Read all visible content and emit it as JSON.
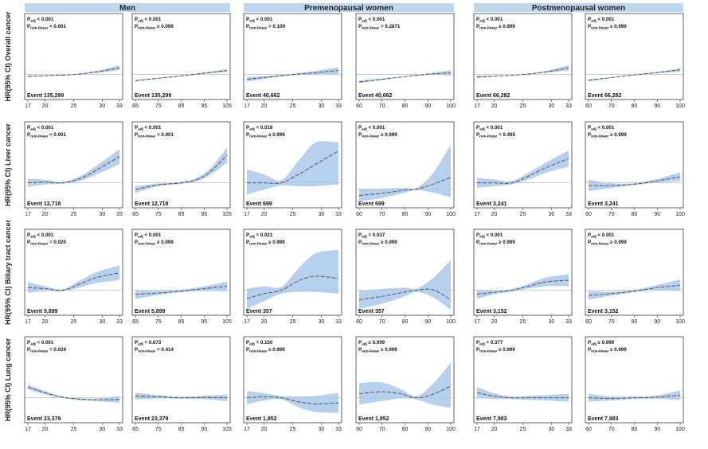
{
  "groups": [
    "Men",
    "Premenopausal women",
    "Postmenopausal women"
  ],
  "rows": [
    "HR(95% CI) Overall cancer",
    "HR(95% CI) Liver cancer",
    "HR(95% CI) Biliary tract cancer",
    "HR(95% CI) Lung cancer"
  ],
  "chart_data": [
    {
      "type": "line",
      "row": 0,
      "col": 0,
      "xticks": [
        "17",
        "20",
        "25",
        "30",
        "33"
      ],
      "xlim": [
        17,
        33
      ],
      "yticks": [
        "0.5",
        "1.0",
        "1.5",
        "2.0"
      ],
      "ylim": [
        0.4,
        2.2
      ],
      "p_adj": "< 0.001",
      "p_nonlinear": "< 0.001",
      "event": "Event 135,299",
      "x": [
        17,
        21,
        25,
        29,
        33
      ],
      "y": [
        0.95,
        0.97,
        1.0,
        1.08,
        1.2
      ],
      "lo": [
        0.93,
        0.96,
        0.99,
        1.05,
        1.13
      ],
      "hi": [
        0.97,
        0.98,
        1.01,
        1.11,
        1.27
      ]
    },
    {
      "type": "line",
      "row": 0,
      "col": 1,
      "xticks": [
        "65",
        "75",
        "85",
        "95",
        "105"
      ],
      "xlim": [
        65,
        105
      ],
      "yticks": [
        "0.5",
        "1.0",
        "1.5",
        "2.0"
      ],
      "ylim": [
        0.4,
        2.2
      ],
      "p_adj": "< 0.001",
      "p_nonlinear": "≥ 0.999",
      "event": "Event 135,299",
      "x": [
        65,
        75,
        85,
        95,
        105
      ],
      "y": [
        0.82,
        0.89,
        0.96,
        1.04,
        1.12
      ],
      "lo": [
        0.8,
        0.88,
        0.95,
        1.02,
        1.08
      ],
      "hi": [
        0.84,
        0.9,
        0.97,
        1.06,
        1.16
      ]
    },
    {
      "type": "line",
      "row": 0,
      "col": 2,
      "xticks": [
        "17",
        "20",
        "25",
        "30",
        "33"
      ],
      "xlim": [
        17,
        33
      ],
      "yticks": [
        "0.5",
        "1.0",
        "1.5",
        "2.0"
      ],
      "ylim": [
        0.4,
        2.2
      ],
      "p_adj": "< 0.001",
      "p_nonlinear": "= 0.109",
      "event": "Event 40,662",
      "x": [
        17,
        21,
        25,
        29,
        33
      ],
      "y": [
        0.86,
        0.93,
        1.0,
        1.06,
        1.12
      ],
      "lo": [
        0.79,
        0.9,
        0.98,
        1.01,
        1.02
      ],
      "hi": [
        0.93,
        0.96,
        1.02,
        1.11,
        1.22
      ]
    },
    {
      "type": "line",
      "row": 0,
      "col": 3,
      "xticks": [
        "60",
        "70",
        "80",
        "90",
        "100"
      ],
      "xlim": [
        60,
        100
      ],
      "yticks": [
        "0.5",
        "1.0",
        "1.5",
        "2.0"
      ],
      "ylim": [
        0.4,
        2.2
      ],
      "p_adj": "< 0.001",
      "p_nonlinear": "= 0.2871",
      "event": "Event 40,662",
      "x": [
        60,
        70,
        80,
        90,
        100
      ],
      "y": [
        0.78,
        0.86,
        0.94,
        1.01,
        1.05
      ],
      "lo": [
        0.74,
        0.84,
        0.93,
        0.99,
        0.97
      ],
      "hi": [
        0.82,
        0.88,
        0.95,
        1.03,
        1.13
      ]
    },
    {
      "type": "line",
      "row": 0,
      "col": 4,
      "xticks": [
        "17",
        "20",
        "25",
        "30",
        "33"
      ],
      "xlim": [
        17,
        33
      ],
      "yticks": [
        "0.5",
        "1.0",
        "1.5",
        "2.0"
      ],
      "ylim": [
        0.4,
        2.2
      ],
      "p_adj": "< 0.001",
      "p_nonlinear": "≥ 0.999",
      "event": "Event 66,282",
      "x": [
        17,
        21,
        25,
        29,
        33
      ],
      "y": [
        0.93,
        0.96,
        1.0,
        1.08,
        1.2
      ],
      "lo": [
        0.9,
        0.95,
        0.99,
        1.05,
        1.12
      ],
      "hi": [
        0.96,
        0.97,
        1.01,
        1.11,
        1.28
      ]
    },
    {
      "type": "line",
      "row": 0,
      "col": 5,
      "xticks": [
        "60",
        "70",
        "80",
        "90",
        "100"
      ],
      "xlim": [
        60,
        100
      ],
      "yticks": [
        "0.5",
        "1.0",
        "1.5",
        "2.0"
      ],
      "ylim": [
        0.4,
        2.2
      ],
      "p_adj": "< 0.001",
      "p_nonlinear": "≥ 0.999",
      "event": "Event 66,282",
      "x": [
        60,
        70,
        80,
        90,
        100
      ],
      "y": [
        0.83,
        0.91,
        0.99,
        1.06,
        1.14
      ],
      "lo": [
        0.8,
        0.9,
        0.98,
        1.04,
        1.09
      ],
      "hi": [
        0.86,
        0.92,
        1.0,
        1.08,
        1.19
      ]
    },
    {
      "type": "line",
      "row": 1,
      "col": 0,
      "xticks": [
        "17",
        "20",
        "25",
        "30",
        "33"
      ],
      "xlim": [
        17,
        33
      ],
      "yticks": [
        "0.5",
        "1.0",
        "1.5",
        "2.0"
      ],
      "ylim": [
        0.4,
        2.2
      ],
      "p_adj": "< 0.001",
      "p_nonlinear": "< 0.001",
      "event": "Event 12,718",
      "x": [
        17,
        20,
        23,
        26,
        29,
        33
      ],
      "y": [
        1.0,
        1.02,
        1.0,
        1.12,
        1.38,
        1.78
      ],
      "lo": [
        0.88,
        0.95,
        0.97,
        1.05,
        1.25,
        1.55
      ],
      "hi": [
        1.12,
        1.09,
        1.03,
        1.19,
        1.51,
        2.0
      ]
    },
    {
      "type": "line",
      "row": 1,
      "col": 1,
      "xticks": [
        "65",
        "75",
        "85",
        "95",
        "105"
      ],
      "xlim": [
        65,
        105
      ],
      "yticks": [
        "0.5",
        "1.0",
        "1.5",
        "2.0"
      ],
      "ylim": [
        0.4,
        2.2
      ],
      "p_adj": "< 0.001",
      "p_nonlinear": "< 0.001",
      "event": "Event 12,718",
      "x": [
        65,
        75,
        85,
        92,
        98,
        105
      ],
      "y": [
        0.8,
        0.94,
        1.0,
        1.1,
        1.35,
        1.82
      ],
      "lo": [
        0.7,
        0.9,
        0.97,
        1.05,
        1.25,
        1.6
      ],
      "hi": [
        0.9,
        0.98,
        1.03,
        1.15,
        1.45,
        2.05
      ]
    },
    {
      "type": "line",
      "row": 1,
      "col": 2,
      "xticks": [
        "17",
        "20",
        "25",
        "30",
        "33"
      ],
      "xlim": [
        17,
        33
      ],
      "yticks": [
        "0.5",
        "1.0",
        "1.5",
        "2.0"
      ],
      "ylim": [
        0.4,
        2.2
      ],
      "p_adj": "= 0.018",
      "p_nonlinear": "≥ 0.999",
      "event": "Event 699",
      "x": [
        17,
        20,
        23,
        26,
        29,
        33
      ],
      "y": [
        1.0,
        1.0,
        1.0,
        1.25,
        1.55,
        1.95
      ],
      "lo": [
        0.65,
        0.8,
        0.92,
        0.9,
        0.9,
        0.95
      ],
      "hi": [
        1.4,
        1.25,
        1.08,
        1.65,
        2.2,
        2.2
      ]
    },
    {
      "type": "line",
      "row": 1,
      "col": 3,
      "xticks": [
        "60",
        "70",
        "80",
        "90",
        "100"
      ],
      "xlim": [
        60,
        100
      ],
      "yticks": [
        "0.5",
        "1.0",
        "1.5",
        "2.0"
      ],
      "ylim": [
        0.4,
        3.0
      ],
      "p_adj": "< 0.001",
      "p_nonlinear": "≥ 0.999",
      "event": "Event 699",
      "x": [
        60,
        70,
        80,
        85,
        92,
        100
      ],
      "y": [
        0.72,
        0.82,
        0.95,
        1.0,
        1.2,
        1.5
      ],
      "lo": [
        0.48,
        0.62,
        0.85,
        0.95,
        0.85,
        0.65
      ],
      "hi": [
        0.98,
        1.02,
        1.05,
        1.05,
        1.65,
        2.9
      ]
    },
    {
      "type": "line",
      "row": 1,
      "col": 4,
      "xticks": [
        "17",
        "20",
        "25",
        "30",
        "33"
      ],
      "xlim": [
        17,
        33
      ],
      "yticks": [
        "0.5",
        "1.0",
        "1.5",
        "2.0"
      ],
      "ylim": [
        0.4,
        2.2
      ],
      "p_adj": "< 0.001",
      "p_nonlinear": "= 0.495",
      "event": "Event 3,241",
      "x": [
        17,
        20,
        23,
        26,
        29,
        33
      ],
      "y": [
        1.0,
        1.0,
        1.0,
        1.2,
        1.45,
        1.72
      ],
      "lo": [
        0.85,
        0.9,
        0.95,
        1.1,
        1.3,
        1.48
      ],
      "hi": [
        1.15,
        1.1,
        1.05,
        1.3,
        1.6,
        1.96
      ]
    },
    {
      "type": "line",
      "row": 1,
      "col": 5,
      "xticks": [
        "60",
        "70",
        "80",
        "90",
        "100"
      ],
      "xlim": [
        60,
        100
      ],
      "yticks": [
        "0.5",
        "1.0",
        "1.5",
        "2.0"
      ],
      "ylim": [
        0.4,
        2.2
      ],
      "p_adj": "< 0.001",
      "p_nonlinear": "≥ 0.999",
      "event": "Event 3,241",
      "x": [
        60,
        70,
        80,
        90,
        100
      ],
      "y": [
        0.92,
        0.92,
        0.96,
        1.06,
        1.18
      ],
      "lo": [
        0.75,
        0.85,
        0.93,
        1.0,
        1.05
      ],
      "hi": [
        1.09,
        0.99,
        0.99,
        1.12,
        1.31
      ]
    },
    {
      "type": "line",
      "row": 2,
      "col": 0,
      "xticks": [
        "17",
        "20",
        "25",
        "30",
        "33"
      ],
      "xlim": [
        17,
        33
      ],
      "yticks": [
        "0.5",
        "1.0",
        "1.5",
        "2.0"
      ],
      "ylim": [
        0.4,
        2.2
      ],
      "p_adj": "< 0.001",
      "p_nonlinear": "= 0.020",
      "event": "Event 5,899",
      "x": [
        17,
        20,
        23,
        26,
        29,
        33
      ],
      "y": [
        1.08,
        1.05,
        1.0,
        1.18,
        1.38,
        1.52
      ],
      "lo": [
        0.92,
        0.98,
        0.97,
        1.08,
        1.22,
        1.3
      ],
      "hi": [
        1.24,
        1.12,
        1.03,
        1.28,
        1.54,
        1.74
      ]
    },
    {
      "type": "line",
      "row": 2,
      "col": 1,
      "xticks": [
        "65",
        "75",
        "85",
        "95",
        "105"
      ],
      "xlim": [
        65,
        105
      ],
      "yticks": [
        "0.5",
        "1.0",
        "1.5",
        "2.0"
      ],
      "ylim": [
        0.4,
        2.2
      ],
      "p_adj": "< 0.001",
      "p_nonlinear": "≥ 0.999",
      "event": "Event 5,899",
      "x": [
        65,
        75,
        85,
        95,
        105
      ],
      "y": [
        0.88,
        0.92,
        0.98,
        1.05,
        1.12
      ],
      "lo": [
        0.75,
        0.86,
        0.94,
        0.98,
        0.98
      ],
      "hi": [
        1.01,
        0.98,
        1.02,
        1.12,
        1.26
      ]
    },
    {
      "type": "line",
      "row": 2,
      "col": 2,
      "xticks": [
        "17",
        "20",
        "25",
        "30",
        "33"
      ],
      "xlim": [
        17,
        33
      ],
      "yticks": [
        "0.5",
        "1.0",
        "1.5",
        "2.0"
      ],
      "ylim": [
        0.4,
        2.2
      ],
      "p_adj": "= 0.021",
      "p_nonlinear": "≥ 0.999",
      "event": "Event 357",
      "x": [
        17,
        20,
        23,
        26,
        29,
        33
      ],
      "y": [
        0.75,
        0.9,
        1.0,
        1.28,
        1.42,
        1.35
      ],
      "lo": [
        0.45,
        0.68,
        0.9,
        0.95,
        0.95,
        0.9
      ],
      "hi": [
        1.05,
        1.12,
        1.1,
        1.65,
        2.1,
        2.2
      ]
    },
    {
      "type": "line",
      "row": 2,
      "col": 3,
      "xticks": [
        "60",
        "70",
        "80",
        "90",
        "100"
      ],
      "xlim": [
        60,
        100
      ],
      "yticks": [
        "0.5",
        "1.0",
        "1.5",
        "2.0"
      ],
      "ylim": [
        0.4,
        2.2
      ],
      "p_adj": "= 0.037",
      "p_nonlinear": "≥ 0.999",
      "event": "Event 357",
      "x": [
        60,
        70,
        80,
        85,
        92,
        100
      ],
      "y": [
        0.72,
        0.82,
        0.95,
        1.0,
        1.02,
        0.72
      ],
      "lo": [
        0.45,
        0.6,
        0.82,
        0.95,
        0.8,
        0.42
      ],
      "hi": [
        0.99,
        1.04,
        1.08,
        1.05,
        1.35,
        1.9
      ]
    },
    {
      "type": "line",
      "row": 2,
      "col": 4,
      "xticks": [
        "17",
        "20",
        "25",
        "30",
        "33"
      ],
      "xlim": [
        17,
        33
      ],
      "yticks": [
        "0.5",
        "1.0",
        "1.5",
        "2.0"
      ],
      "ylim": [
        0.4,
        2.2
      ],
      "p_adj": "< 0.001",
      "p_nonlinear": "≥ 0.999",
      "event": "Event 3,152",
      "x": [
        17,
        20,
        23,
        26,
        29,
        33
      ],
      "y": [
        0.88,
        0.94,
        1.0,
        1.12,
        1.25,
        1.3
      ],
      "lo": [
        0.75,
        0.88,
        0.96,
        1.05,
        1.12,
        1.12
      ],
      "hi": [
        1.01,
        1.0,
        1.04,
        1.19,
        1.38,
        1.48
      ]
    },
    {
      "type": "line",
      "row": 2,
      "col": 5,
      "xticks": [
        "60",
        "70",
        "80",
        "90",
        "100"
      ],
      "xlim": [
        60,
        100
      ],
      "yticks": [
        "0.5",
        "1.0",
        "1.5",
        "2.0"
      ],
      "ylim": [
        0.4,
        2.2
      ],
      "p_adj": "< 0.001",
      "p_nonlinear": "≥ 0.999",
      "event": "Event 3,152",
      "x": [
        60,
        70,
        80,
        90,
        100
      ],
      "y": [
        0.85,
        0.9,
        0.98,
        1.08,
        1.15
      ],
      "lo": [
        0.72,
        0.84,
        0.94,
        1.0,
        0.98
      ],
      "hi": [
        0.98,
        0.96,
        1.02,
        1.16,
        1.32
      ]
    },
    {
      "type": "line",
      "row": 3,
      "col": 0,
      "xticks": [
        "17",
        "20",
        "25",
        "30",
        "33"
      ],
      "xlim": [
        17,
        33
      ],
      "yticks": [
        "0.5",
        "1.0",
        "1.5",
        "2.0"
      ],
      "ylim": [
        0.4,
        2.2
      ],
      "p_adj": "< 0.001",
      "p_nonlinear": "= 0.029",
      "event": "Event 23,379",
      "x": [
        17,
        20,
        23,
        26,
        29,
        33
      ],
      "y": [
        1.32,
        1.15,
        1.02,
        0.96,
        0.94,
        0.95
      ],
      "lo": [
        1.25,
        1.1,
        1.0,
        0.93,
        0.9,
        0.85
      ],
      "hi": [
        1.39,
        1.2,
        1.04,
        0.99,
        0.98,
        1.05
      ]
    },
    {
      "type": "line",
      "row": 3,
      "col": 1,
      "xticks": [
        "65",
        "75",
        "85",
        "95",
        "105"
      ],
      "xlim": [
        65,
        105
      ],
      "yticks": [
        "0.5",
        "1.0",
        "1.5",
        "2.0"
      ],
      "ylim": [
        0.4,
        2.2
      ],
      "p_adj": "= 0.673",
      "p_nonlinear": "= 0.414",
      "event": "Event 23,379",
      "x": [
        65,
        75,
        85,
        95,
        105
      ],
      "y": [
        1.05,
        1.03,
        1.0,
        1.01,
        1.0
      ],
      "lo": [
        0.95,
        0.98,
        0.97,
        0.96,
        0.9
      ],
      "hi": [
        1.15,
        1.08,
        1.03,
        1.06,
        1.1
      ]
    },
    {
      "type": "line",
      "row": 3,
      "col": 2,
      "xticks": [
        "17",
        "20",
        "25",
        "30",
        "33"
      ],
      "xlim": [
        17,
        33
      ],
      "yticks": [
        "0.5",
        "1.0",
        "1.5",
        "2.0"
      ],
      "ylim": [
        0.4,
        2.2
      ],
      "p_adj": "= 0.150",
      "p_nonlinear": "≥ 0.999",
      "event": "Event 1,852",
      "x": [
        17,
        20,
        23,
        26,
        29,
        33
      ],
      "y": [
        1.0,
        1.03,
        1.0,
        0.88,
        0.82,
        0.85
      ],
      "lo": [
        0.8,
        0.92,
        0.95,
        0.72,
        0.58,
        0.55
      ],
      "hi": [
        1.2,
        1.14,
        1.05,
        1.04,
        1.06,
        1.15
      ]
    },
    {
      "type": "line",
      "row": 3,
      "col": 3,
      "xticks": [
        "60",
        "70",
        "80",
        "90",
        "100"
      ],
      "xlim": [
        60,
        100
      ],
      "yticks": [
        "0.5",
        "1.0",
        "1.5",
        "2.0"
      ],
      "ylim": [
        0.4,
        2.2
      ],
      "p_adj": "≥ 0.999",
      "p_nonlinear": "≥ 0.999",
      "event": "Event 1,852",
      "x": [
        60,
        70,
        78,
        85,
        92,
        100
      ],
      "y": [
        1.12,
        1.18,
        1.12,
        1.0,
        1.1,
        1.35
      ],
      "lo": [
        0.8,
        0.9,
        0.98,
        0.95,
        0.8,
        0.7
      ],
      "hi": [
        1.44,
        1.46,
        1.26,
        1.05,
        1.4,
        2.05
      ]
    },
    {
      "type": "line",
      "row": 3,
      "col": 4,
      "xticks": [
        "17",
        "20",
        "25",
        "30",
        "33"
      ],
      "xlim": [
        17,
        33
      ],
      "yticks": [
        "0.5",
        "1.0",
        "1.5",
        "2.0"
      ],
      "ylim": [
        0.4,
        2.2
      ],
      "p_adj": "= 0.377",
      "p_nonlinear": "≥ 0.999",
      "event": "Event 7,983",
      "x": [
        17,
        20,
        23,
        26,
        29,
        33
      ],
      "y": [
        1.15,
        1.05,
        1.0,
        1.0,
        1.0,
        1.0
      ],
      "lo": [
        0.98,
        0.97,
        0.96,
        0.94,
        0.92,
        0.88
      ],
      "hi": [
        1.32,
        1.13,
        1.04,
        1.06,
        1.08,
        1.12
      ]
    },
    {
      "type": "line",
      "row": 3,
      "col": 5,
      "xticks": [
        "60",
        "70",
        "80",
        "90",
        "100"
      ],
      "xlim": [
        60,
        100
      ],
      "yticks": [
        "0.5",
        "1.0",
        "1.5",
        "2.0"
      ],
      "ylim": [
        0.4,
        2.2
      ],
      "p_adj": "≥ 0.999",
      "p_nonlinear": "≥ 0.999",
      "event": "Event 7,983",
      "x": [
        60,
        70,
        80,
        90,
        100
      ],
      "y": [
        1.0,
        0.98,
        1.0,
        1.02,
        1.08
      ],
      "lo": [
        0.88,
        0.92,
        0.96,
        0.97,
        0.94
      ],
      "hi": [
        1.12,
        1.04,
        1.04,
        1.07,
        1.22
      ]
    }
  ]
}
